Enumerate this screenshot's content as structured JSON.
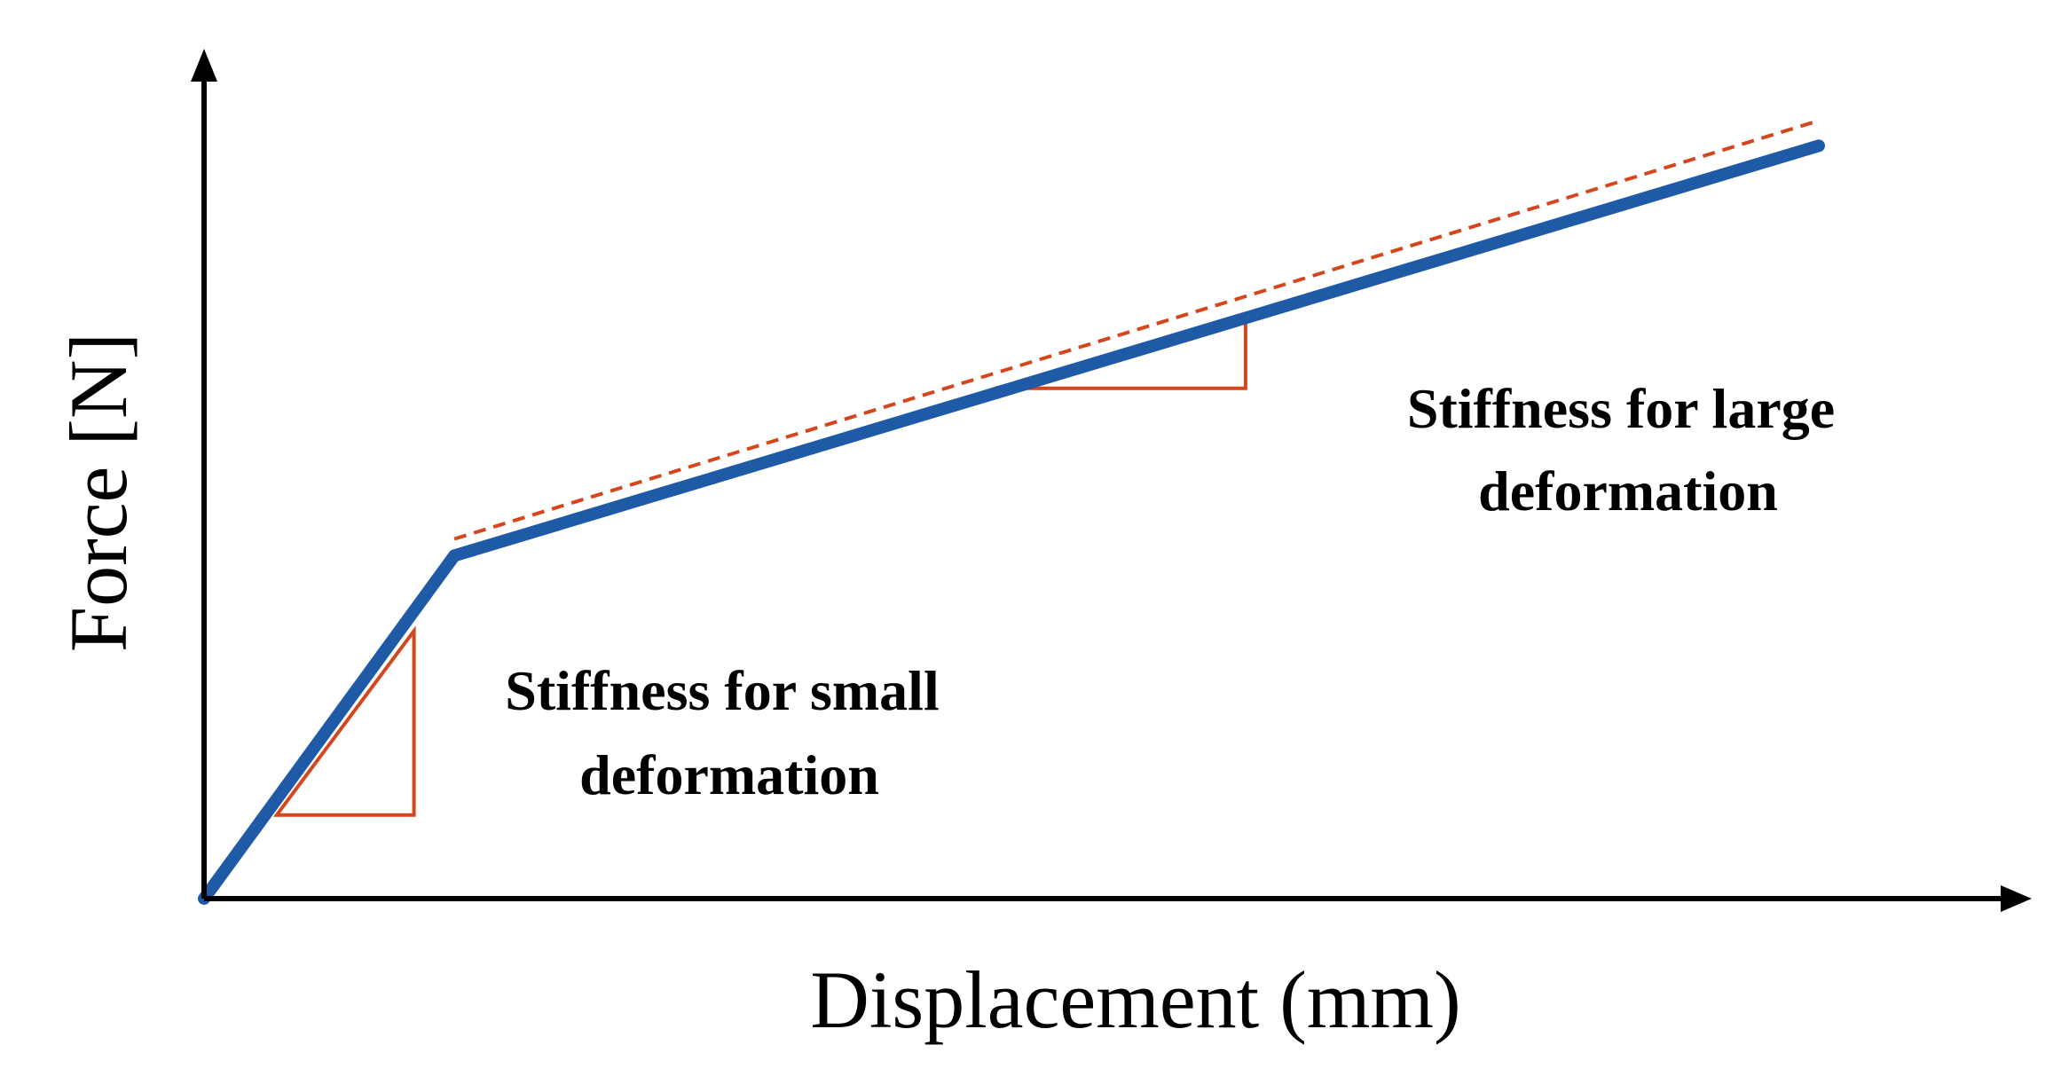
{
  "chart_data": {
    "type": "line",
    "xlabel": "Displacement (mm)",
    "ylabel": "Force [N]",
    "xlim": [
      0,
      1
    ],
    "ylim": [
      0,
      1
    ],
    "grid": false,
    "legend": "none",
    "series": [
      {
        "x": [
          0,
          0.155,
          1.0
        ],
        "y": [
          0,
          0.41,
          0.9
        ]
      }
    ],
    "reference_lines": [
      {
        "style": "dashed",
        "x": [
          0.155,
          1.0
        ],
        "y": [
          0.43,
          0.93
        ]
      }
    ],
    "slope_triangles": [
      {
        "x_start": 0.045,
        "x_end": 0.13,
        "y_base": 0.1,
        "y_top": 0.32
      },
      {
        "x_start": 0.49,
        "x_end": 0.645,
        "y_base": 0.61,
        "y_top": 0.69
      }
    ],
    "annotations": [
      {
        "lines": [
          "Stiffness for small",
          "deformation"
        ]
      },
      {
        "lines": [
          "Stiffness for large",
          "deformation"
        ]
      }
    ],
    "colors": {
      "curve": "#1f5aa6",
      "reference": "#d4471e",
      "axes": "#000000"
    }
  }
}
